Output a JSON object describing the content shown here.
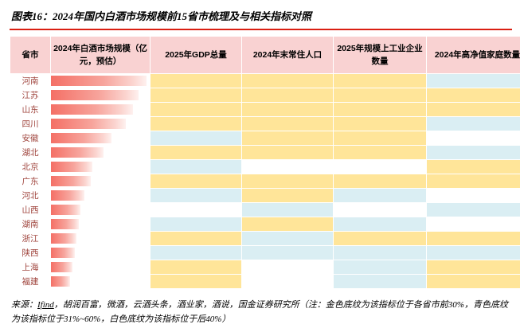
{
  "figure": {
    "title": "图表16：2024年国内白酒市场规模前15省市梳理及与相关指标对照",
    "source_prefix": "来源：",
    "source_link": "Ifind",
    "source_rest": "，胡润百富，微酒，云酒头条，酒业家，酒说，国金证券研究所（注：金色底纹为该指标位于各省市前30%，青色底纹为该指标位于31%~60%，白色底纹为该指标位于后40%）"
  },
  "table": {
    "headers": [
      "省市",
      "2024年白酒市场规模（亿元，预估）",
      "2025年GDP总量",
      "2024年末常住人口",
      "2025年规模上工业企业数量",
      "2024年高净值家庭数量"
    ]
  },
  "legend": {
    "gold": "#FFE599",
    "cyan": "#DAEEF3",
    "white": "#FFFFFF",
    "gold_meaning": "该指标位于各省市前30%",
    "cyan_meaning": "该指标位于31%~60%",
    "white_meaning": "该指标位于后40%"
  },
  "colors": {
    "header_bg": "#F9D2D2",
    "title_rule": "#DA1F12",
    "bar_start": "#F47066",
    "province_text": "#A0453E"
  },
  "chart_data": {
    "type": "table",
    "title": "2024年国内白酒市场规模前15省市梳理及与相关指标对照",
    "columns": [
      "省市",
      "2024年白酒市场规模（亿元，预估）",
      "2025年GDP总量",
      "2024年末常住人口",
      "2025年规模上工业企业数量",
      "2024年高净值家庭数量"
    ],
    "bar_note": "bar_percent为红色数据条相对长度（河南最长=97）",
    "tier_legend": {
      "gold": "前30%",
      "cyan": "31%~60%",
      "white": "后40%"
    },
    "rows": [
      {
        "province": "河南",
        "bar_percent": 97,
        "gdp": "gold",
        "population": "gold",
        "industry": "gold",
        "hnw": "cyan"
      },
      {
        "province": "江苏",
        "bar_percent": 89,
        "gdp": "gold",
        "population": "gold",
        "industry": "gold",
        "hnw": "gold"
      },
      {
        "province": "山东",
        "bar_percent": 83,
        "gdp": "gold",
        "population": "gold",
        "industry": "gold",
        "hnw": "gold"
      },
      {
        "province": "四川",
        "bar_percent": 76,
        "gdp": "gold",
        "population": "gold",
        "industry": "gold",
        "hnw": "cyan"
      },
      {
        "province": "安徽",
        "bar_percent": 61,
        "gdp": "cyan",
        "population": "gold",
        "industry": "gold",
        "hnw": "white"
      },
      {
        "province": "湖北",
        "bar_percent": 53,
        "gdp": "gold",
        "population": "gold",
        "industry": "gold",
        "hnw": "cyan"
      },
      {
        "province": "北京",
        "bar_percent": 42,
        "gdp": "cyan",
        "population": "white",
        "industry": "white",
        "hnw": "gold"
      },
      {
        "province": "广东",
        "bar_percent": 40,
        "gdp": "gold",
        "population": "gold",
        "industry": "gold",
        "hnw": "gold"
      },
      {
        "province": "河北",
        "bar_percent": 34,
        "gdp": "cyan",
        "population": "gold",
        "industry": "cyan",
        "hnw": "white"
      },
      {
        "province": "山西",
        "bar_percent": 30,
        "gdp": "white",
        "population": "cyan",
        "industry": "white",
        "hnw": "cyan"
      },
      {
        "province": "湖南",
        "bar_percent": 28,
        "gdp": "cyan",
        "population": "gold",
        "industry": "cyan",
        "hnw": "white"
      },
      {
        "province": "浙江",
        "bar_percent": 26,
        "gdp": "gold",
        "population": "cyan",
        "industry": "gold",
        "hnw": "gold"
      },
      {
        "province": "陕西",
        "bar_percent": 24,
        "gdp": "cyan",
        "population": "cyan",
        "industry": "cyan",
        "hnw": "cyan"
      },
      {
        "province": "上海",
        "bar_percent": 22,
        "gdp": "gold",
        "population": "white",
        "industry": "cyan",
        "hnw": "gold"
      },
      {
        "province": "福建",
        "bar_percent": 19,
        "gdp": "gold",
        "population": "white",
        "industry": "cyan",
        "hnw": "gold"
      }
    ]
  }
}
